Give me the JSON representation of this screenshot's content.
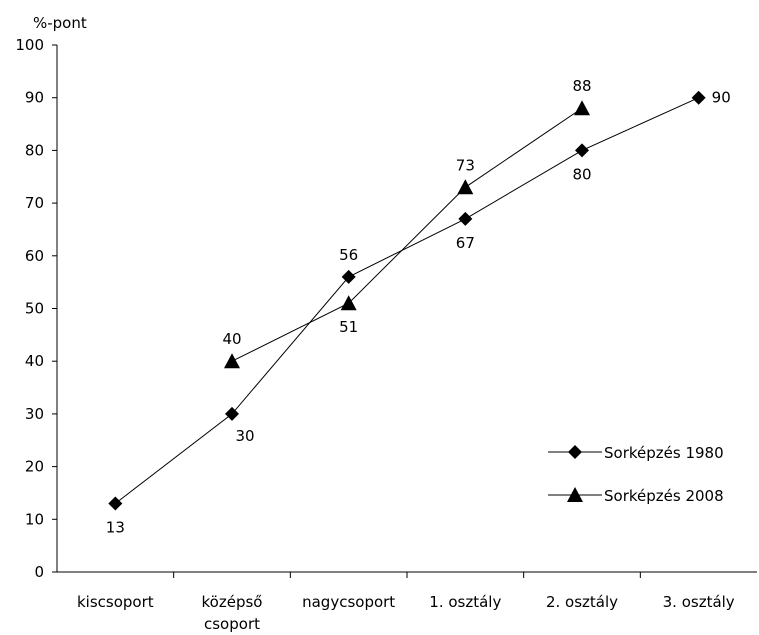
{
  "chart_data": {
    "type": "line",
    "title": "",
    "ylabel": "%-pont",
    "xlabel": "",
    "ylim": [
      0,
      100
    ],
    "yticks": [
      0,
      10,
      20,
      30,
      40,
      50,
      60,
      70,
      80,
      90,
      100
    ],
    "categories": [
      [
        "kiscsoport"
      ],
      [
        "középső",
        "csoport"
      ],
      [
        "nagycsoport"
      ],
      [
        "1. osztály"
      ],
      [
        "2. osztály"
      ],
      [
        "3. osztály"
      ]
    ],
    "series": [
      {
        "name": "Sorképzés 1980",
        "marker": "diamond",
        "values": [
          13,
          30,
          56,
          67,
          80,
          90
        ],
        "label_pos": [
          "below",
          "below-right",
          "above",
          "below",
          "below",
          "right"
        ]
      },
      {
        "name": "Sorképzés 2008",
        "marker": "triangle",
        "values": [
          null,
          40,
          51,
          73,
          88,
          null
        ],
        "label_pos": [
          null,
          "above",
          "below",
          "above",
          "above",
          null
        ]
      }
    ],
    "legend": "lower-right",
    "grid": false,
    "colors": {
      "line": "#000000",
      "marker": "#000000"
    }
  }
}
